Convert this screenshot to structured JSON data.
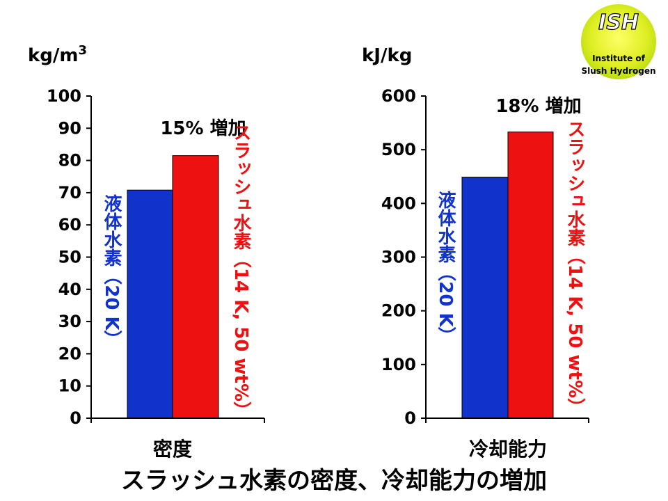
{
  "title": "スラッシュ水素の密度、冷却能力の増加",
  "logo": {
    "abbr": "ISH",
    "line1": "Institute of",
    "line2": "Slush Hydrogen"
  },
  "colors": {
    "liquid": "#1133cc",
    "slush": "#ee1111"
  },
  "chart_data": [
    {
      "type": "bar",
      "unit_label": "kg/m",
      "unit_sup": "3",
      "category": "密度",
      "ylim": [
        0,
        100
      ],
      "yticks": [
        "0",
        "10",
        "20",
        "30",
        "40",
        "50",
        "60",
        "70",
        "80",
        "90",
        "100"
      ],
      "series": [
        {
          "name": "液体水素（20 K）",
          "value": 70.8,
          "color": "#1133cc"
        },
        {
          "name": "スラッシュ水素（14 K, 50 wt%）",
          "value": 81.5,
          "color": "#ee1111"
        }
      ],
      "annotation": "15% 増加",
      "grid": false
    },
    {
      "type": "bar",
      "unit_label": "kJ/kg",
      "unit_sup": "",
      "category": "冷却能力",
      "ylim": [
        0,
        600
      ],
      "yticks": [
        "0",
        "100",
        "200",
        "300",
        "400",
        "500",
        "600"
      ],
      "series": [
        {
          "name": "液体水素（20 K）",
          "value": 449,
          "color": "#1133cc"
        },
        {
          "name": "スラッシュ水素（14 K, 50 wt%）",
          "value": 533,
          "color": "#ee1111"
        }
      ],
      "annotation": "18% 増加",
      "grid": false
    }
  ]
}
